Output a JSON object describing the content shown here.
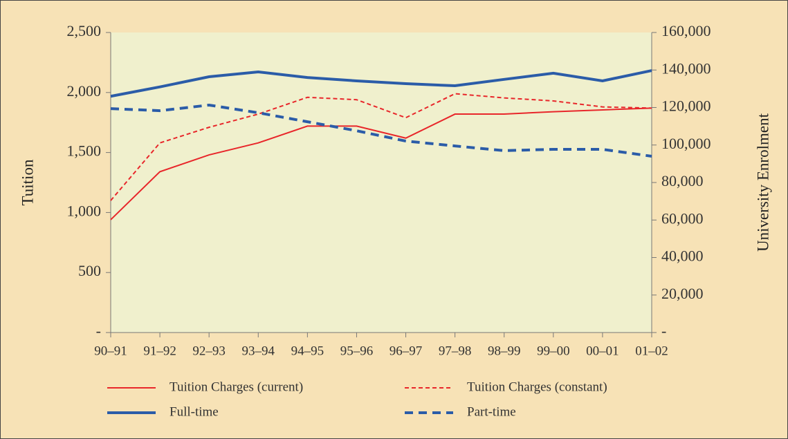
{
  "chart_data": {
    "type": "line",
    "categories": [
      "90–91",
      "91–92",
      "92–93",
      "93–94",
      "94–95",
      "95–96",
      "96–97",
      "97–98",
      "98–99",
      "99–00",
      "00–01",
      "01–02"
    ],
    "ylabel": "Tuition",
    "y2label": "University Enrolment",
    "ylim": [
      0,
      2500
    ],
    "yticks": [
      {
        "value": 0,
        "label": "-"
      },
      500,
      {
        "value": 1000,
        "label": "1,000"
      },
      {
        "value": 1500,
        "label": "1,500"
      },
      {
        "value": 2000,
        "label": "2,000"
      },
      {
        "value": 2500,
        "label": "2,500"
      }
    ],
    "y2lim": [
      0,
      160000
    ],
    "y2ticks": [
      {
        "value": 0,
        "label": "-"
      },
      {
        "value": 20000,
        "label": "20,000"
      },
      {
        "value": 40000,
        "label": "40,000"
      },
      {
        "value": 60000,
        "label": "60,000"
      },
      {
        "value": 80000,
        "label": "80,000"
      },
      {
        "value": 100000,
        "label": "100,000"
      },
      {
        "value": 120000,
        "label": "120,000"
      },
      {
        "value": 140000,
        "label": "140,000"
      },
      {
        "value": 160000,
        "label": "160,000"
      }
    ],
    "series": [
      {
        "name": "Tuition Charges (current)",
        "color": "#e8262a",
        "dashed": false,
        "width": 2,
        "values": [
          940,
          1340,
          1480,
          1580,
          1720,
          1720,
          1620,
          1820,
          1820,
          1840,
          1855,
          1870
        ]
      },
      {
        "name": "Tuition Charges (constant)",
        "color": "#e8262a",
        "dashed": true,
        "width": 2,
        "values": [
          1100,
          1580,
          1710,
          1820,
          1960,
          1940,
          1790,
          1990,
          1955,
          1930,
          1880,
          1870
        ]
      },
      {
        "name": "Full-time",
        "color": "#2b5ca8",
        "dashed": false,
        "width": 4,
        "axis": "y2",
        "values": [
          126000,
          131000,
          136400,
          139000,
          136000,
          134200,
          132700,
          131600,
          135000,
          138300,
          134200,
          139700
        ]
      },
      {
        "name": "Part-time",
        "color": "#2b5ca8",
        "dashed": true,
        "width": 4,
        "axis": "y2",
        "values": [
          119400,
          118300,
          121300,
          117200,
          112400,
          107600,
          102100,
          99500,
          97000,
          97700,
          97700,
          94000
        ]
      }
    ]
  }
}
